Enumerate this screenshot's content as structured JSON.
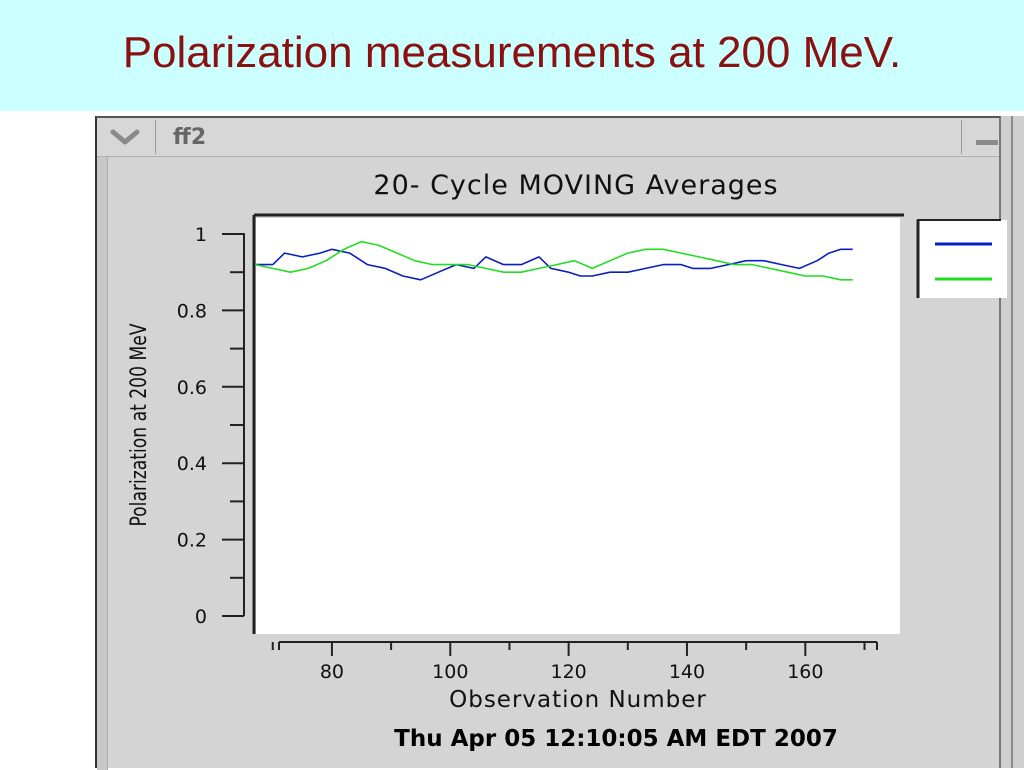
{
  "slide": {
    "title": "Polarization measurements at 200 MeV."
  },
  "window": {
    "title": "ff2"
  },
  "chart_data": {
    "type": "line",
    "title": "20- Cycle MOVING Averages",
    "xlabel": "Observation Number",
    "ylabel": "Polarization at 200 MeV",
    "timestamp": "Thu Apr 05 12:10:05 AM EDT 2007",
    "xlim": [
      67,
      176
    ],
    "ylim": [
      0,
      1
    ],
    "x_ticks": [
      80,
      100,
      120,
      140,
      160
    ],
    "y_ticks": [
      0,
      0.2,
      0.4,
      0.6,
      0.8,
      1
    ],
    "y_tick_labels": [
      "0",
      "0.2",
      "0.4",
      "0.6",
      "0.8",
      "1"
    ],
    "x_tick_labels": [
      "80",
      "100",
      "120",
      "140",
      "160"
    ],
    "grid": false,
    "legend_position": "right",
    "series": [
      {
        "color": "#0a1fbf",
        "x": [
          67,
          70,
          72,
          75,
          78,
          80,
          83,
          86,
          89,
          92,
          95,
          98,
          101,
          104,
          106,
          109,
          112,
          115,
          117,
          120,
          122,
          124,
          127,
          130,
          133,
          136,
          139,
          141,
          144,
          147,
          150,
          153,
          156,
          159,
          162,
          164,
          166,
          168
        ],
        "y": [
          0.92,
          0.92,
          0.95,
          0.94,
          0.95,
          0.96,
          0.95,
          0.92,
          0.91,
          0.89,
          0.88,
          0.9,
          0.92,
          0.91,
          0.94,
          0.92,
          0.92,
          0.94,
          0.91,
          0.9,
          0.89,
          0.89,
          0.9,
          0.9,
          0.91,
          0.92,
          0.92,
          0.91,
          0.91,
          0.92,
          0.93,
          0.93,
          0.92,
          0.91,
          0.93,
          0.95,
          0.96,
          0.96
        ]
      },
      {
        "color": "#22dd22",
        "x": [
          67,
          70,
          73,
          76,
          79,
          82,
          85,
          88,
          91,
          94,
          97,
          100,
          103,
          106,
          109,
          112,
          115,
          118,
          121,
          124,
          127,
          130,
          133,
          136,
          139,
          142,
          145,
          148,
          151,
          154,
          157,
          160,
          163,
          166,
          168
        ],
        "y": [
          0.92,
          0.91,
          0.9,
          0.91,
          0.93,
          0.96,
          0.98,
          0.97,
          0.95,
          0.93,
          0.92,
          0.92,
          0.92,
          0.91,
          0.9,
          0.9,
          0.91,
          0.92,
          0.93,
          0.91,
          0.93,
          0.95,
          0.96,
          0.96,
          0.95,
          0.94,
          0.93,
          0.92,
          0.92,
          0.91,
          0.9,
          0.89,
          0.89,
          0.88,
          0.88
        ]
      }
    ]
  }
}
